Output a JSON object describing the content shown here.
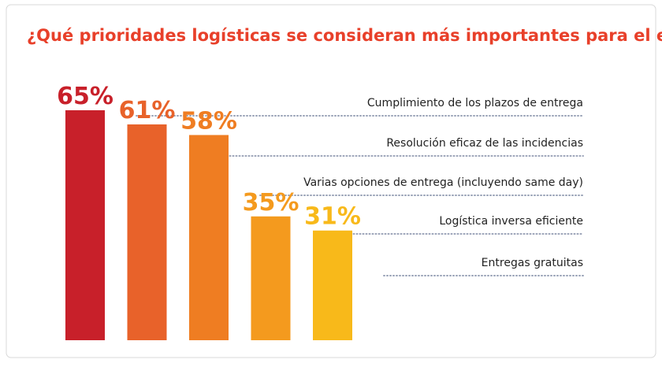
{
  "chart_data": {
    "type": "bar",
    "title": "¿Qué prioridades logísticas se consideran más importantes para el eCommerce?",
    "categories": [
      "Cumplimiento de los plazos de entrega",
      "Resolución eficaz de las incidencias",
      "Varias opciones de entrega (incluyendo same day)",
      "Logística inversa eficiente",
      "Entregas gratuitas"
    ],
    "values": [
      65,
      61,
      58,
      35,
      31
    ],
    "value_labels": [
      "65%",
      "61%",
      "58%",
      "35%",
      "31%"
    ],
    "colors": [
      "#c8202a",
      "#e8622a",
      "#ef7d22",
      "#f49a1e",
      "#f8b91a"
    ]
  }
}
